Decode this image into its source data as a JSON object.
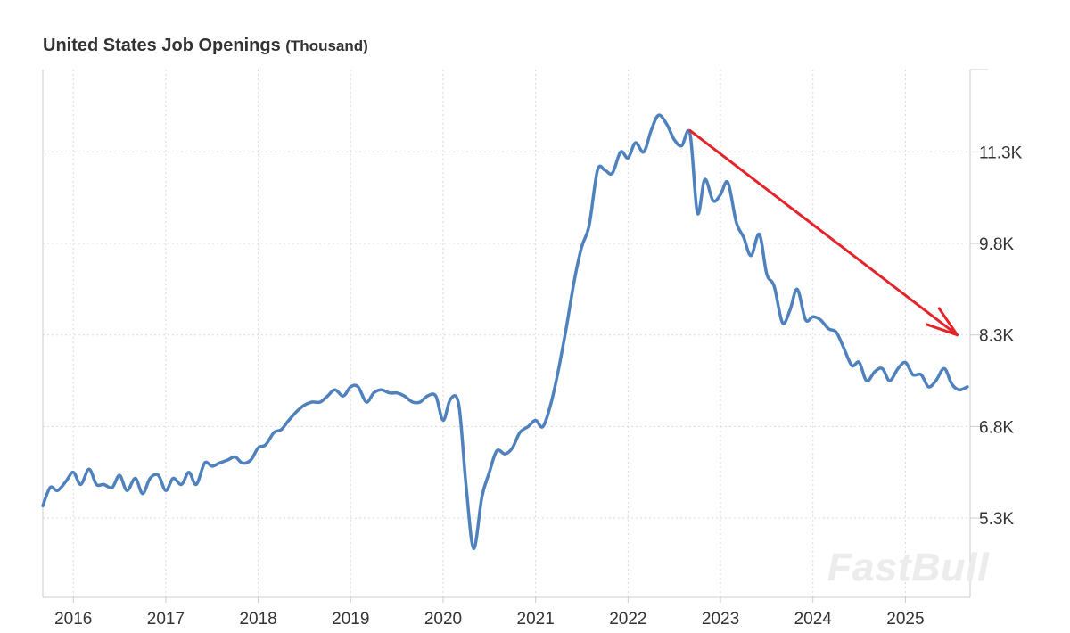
{
  "chart_data": {
    "type": "line",
    "title": "United States Job Openings",
    "unit": "(Thousand)",
    "xlabel": "",
    "ylabel": "",
    "x_tick_labels": [
      "2016",
      "2017",
      "2018",
      "2019",
      "2020",
      "2021",
      "2022",
      "2023",
      "2024",
      "2025"
    ],
    "x_range": [
      2015.67,
      2025.7
    ],
    "y_tick_values": [
      5300,
      6800,
      8300,
      9800,
      11300
    ],
    "y_tick_labels": [
      "5.3K",
      "6.8K",
      "8.3K",
      "9.8K",
      "11.3K"
    ],
    "ylim": [
      4000,
      12650
    ],
    "grid": true,
    "colors": {
      "series": "#4f81bd",
      "arrow": "#e3242b",
      "grid": "#d9d9d9",
      "axis": "#cccccc",
      "text": "#333333"
    },
    "series": [
      {
        "name": "Job Openings",
        "x": [
          2015.67,
          2015.75,
          2015.83,
          2015.92,
          2016.0,
          2016.08,
          2016.17,
          2016.25,
          2016.33,
          2016.42,
          2016.5,
          2016.58,
          2016.67,
          2016.75,
          2016.83,
          2016.92,
          2017.0,
          2017.08,
          2017.17,
          2017.25,
          2017.33,
          2017.42,
          2017.5,
          2017.58,
          2017.67,
          2017.75,
          2017.83,
          2017.92,
          2018.0,
          2018.08,
          2018.17,
          2018.25,
          2018.33,
          2018.42,
          2018.5,
          2018.58,
          2018.67,
          2018.75,
          2018.83,
          2018.92,
          2019.0,
          2019.08,
          2019.17,
          2019.25,
          2019.33,
          2019.42,
          2019.5,
          2019.58,
          2019.67,
          2019.75,
          2019.83,
          2019.92,
          2020.0,
          2020.08,
          2020.17,
          2020.25,
          2020.33,
          2020.42,
          2020.5,
          2020.58,
          2020.67,
          2020.75,
          2020.83,
          2020.92,
          2021.0,
          2021.08,
          2021.17,
          2021.25,
          2021.33,
          2021.42,
          2021.5,
          2021.58,
          2021.67,
          2021.75,
          2021.83,
          2021.92,
          2022.0,
          2022.08,
          2022.17,
          2022.25,
          2022.33,
          2022.42,
          2022.5,
          2022.58,
          2022.67,
          2022.75,
          2022.83,
          2022.92,
          2023.0,
          2023.08,
          2023.17,
          2023.25,
          2023.33,
          2023.42,
          2023.5,
          2023.58,
          2023.67,
          2023.75,
          2023.83,
          2023.92,
          2024.0,
          2024.08,
          2024.17,
          2024.25,
          2024.33,
          2024.42,
          2024.5,
          2024.58,
          2024.67,
          2024.75,
          2024.83,
          2024.92,
          2025.0,
          2025.08,
          2025.17,
          2025.25,
          2025.33,
          2025.42,
          2025.5,
          2025.58,
          2025.67
        ],
        "values": [
          5500,
          5800,
          5750,
          5900,
          6050,
          5850,
          6100,
          5850,
          5850,
          5800,
          6000,
          5750,
          5950,
          5700,
          5950,
          6000,
          5750,
          5950,
          5850,
          6050,
          5850,
          6200,
          6150,
          6200,
          6250,
          6300,
          6200,
          6250,
          6450,
          6500,
          6700,
          6750,
          6900,
          7050,
          7150,
          7200,
          7200,
          7300,
          7400,
          7300,
          7450,
          7450,
          7200,
          7350,
          7400,
          7350,
          7350,
          7300,
          7200,
          7200,
          7300,
          7300,
          6900,
          7250,
          7150,
          5800,
          4800,
          5650,
          6050,
          6400,
          6350,
          6450,
          6700,
          6800,
          6900,
          6800,
          7200,
          7750,
          8400,
          9200,
          9750,
          10100,
          11000,
          11000,
          10950,
          11300,
          11200,
          11450,
          11300,
          11650,
          11900,
          11750,
          11500,
          11400,
          11600,
          10300,
          10850,
          10500,
          10600,
          10800,
          10150,
          9900,
          9600,
          9950,
          9300,
          9100,
          8500,
          8700,
          9050,
          8550,
          8600,
          8550,
          8400,
          8350,
          8100,
          7800,
          7850,
          7550,
          7700,
          7750,
          7550,
          7750,
          7850,
          7650,
          7650,
          7450,
          7550,
          7750,
          7500,
          7400,
          7450
        ]
      }
    ],
    "annotations": [
      {
        "type": "arrow",
        "description": "downtrend",
        "from": [
          2022.67,
          11650
        ],
        "to": [
          2025.56,
          8300
        ]
      }
    ],
    "watermark": "FastBull"
  }
}
